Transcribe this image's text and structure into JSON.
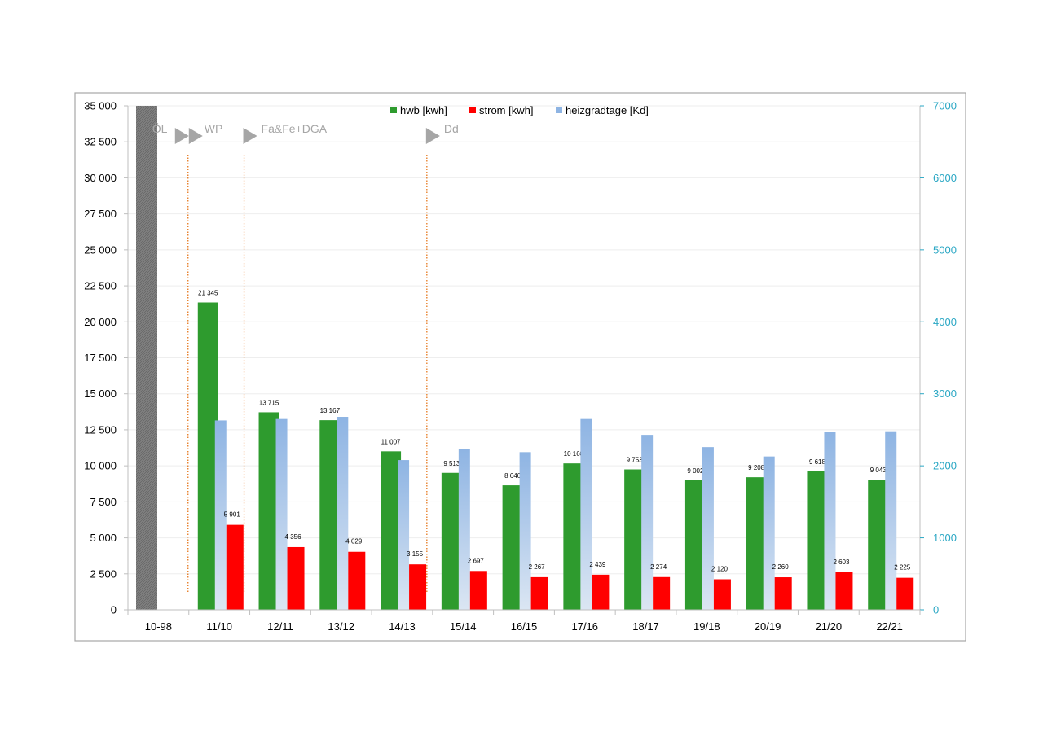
{
  "chart_data": {
    "type": "bar",
    "categories": [
      "10-98",
      "11/10",
      "12/11",
      "13/12",
      "14/13",
      "15/14",
      "16/15",
      "17/16",
      "18/17",
      "19/18",
      "20/19",
      "21/20",
      "22/21"
    ],
    "series": [
      {
        "name": "hwb [kwh]",
        "axis": "left",
        "color": "#2e9b2e",
        "values": [
          35000,
          21345,
          13715,
          13167,
          11007,
          9513,
          8646,
          10168,
          9753,
          9002,
          9208,
          9618,
          9043
        ],
        "labels": [
          "",
          "21 345",
          "13 715",
          "13 167",
          "11 007",
          "9 513",
          "8 646",
          "10 168",
          "9 753",
          "9 002",
          "9 208",
          "9 618",
          "9 043"
        ]
      },
      {
        "name": "strom [kwh]",
        "axis": "left",
        "color": "#ff0000",
        "values": [
          null,
          5901,
          4356,
          4029,
          3155,
          2697,
          2267,
          2439,
          2274,
          2120,
          2260,
          2603,
          2225
        ],
        "labels": [
          "",
          "5 901",
          "4 356",
          "4 029",
          "3 155",
          "2 697",
          "2 267",
          "2 439",
          "2 274",
          "2 120",
          "2 260",
          "2 603",
          "2 225"
        ]
      },
      {
        "name": "heizgradtage [Kd]",
        "axis": "right",
        "color": "#8eb4e3",
        "values": [
          null,
          2630,
          2650,
          2680,
          2080,
          2230,
          2190,
          2650,
          2430,
          2260,
          2130,
          2470,
          2480
        ]
      }
    ],
    "first_bar_color": "#7f7f7f",
    "left_axis": {
      "min": 0,
      "max": 35000,
      "step": 2500,
      "tick_labels": [
        "0",
        "2 500",
        "5 000",
        "7 500",
        "10 000",
        "12 500",
        "15 000",
        "17 500",
        "20 000",
        "22 500",
        "25 000",
        "27 500",
        "30 000",
        "32 500",
        "35 000"
      ]
    },
    "right_axis": {
      "min": 0,
      "max": 7000,
      "step": 1000,
      "color": "#2aa7c4",
      "tick_labels": [
        "0",
        "1000",
        "2000",
        "3000",
        "4000",
        "5000",
        "6000",
        "7000"
      ]
    },
    "legend_position": "top-center",
    "grid": true,
    "annotations": [
      {
        "text": "ÖL",
        "category_index": 1,
        "marker_count": 2
      },
      {
        "text": "WP",
        "category_index": 1,
        "marker_count": 0
      },
      {
        "text": "Fa&Fe+DGA",
        "category_index": 2,
        "marker_count": 1
      },
      {
        "text": "Dd",
        "category_index": 5,
        "marker_count": 1
      }
    ],
    "annotation_color": "#a6a6a6",
    "divider_color": "#e46c0a"
  }
}
